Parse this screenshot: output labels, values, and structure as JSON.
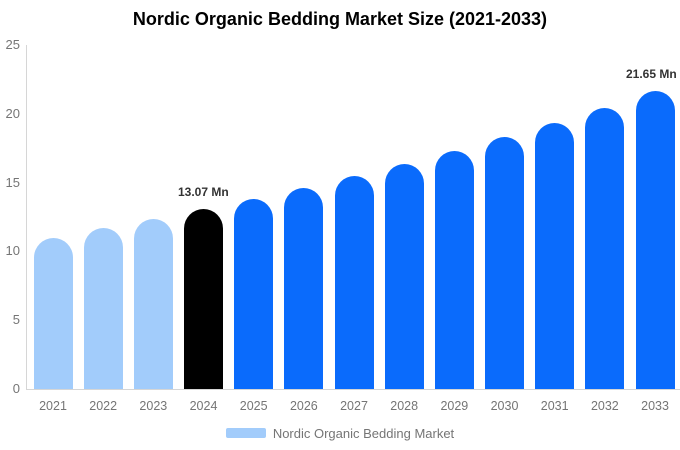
{
  "chart_data": {
    "type": "bar",
    "title": "Nordic Organic Bedding Market Size (2021-2033)",
    "categories": [
      "2021",
      "2022",
      "2023",
      "2024",
      "2025",
      "2026",
      "2027",
      "2028",
      "2029",
      "2030",
      "2031",
      "2032",
      "2033"
    ],
    "values": [
      11.0,
      11.7,
      12.35,
      13.07,
      13.8,
      14.6,
      15.45,
      16.35,
      17.3,
      18.3,
      19.35,
      20.45,
      21.65
    ],
    "bar_styles": [
      "past",
      "past",
      "past",
      "current",
      "forecast",
      "forecast",
      "forecast",
      "forecast",
      "forecast",
      "forecast",
      "forecast",
      "forecast",
      "forecast"
    ],
    "data_labels": [
      {
        "category": "2024",
        "text": "13.07 Mn"
      },
      {
        "category": "2033",
        "text": "21.65 Mn"
      }
    ],
    "value_unit": "Mn",
    "xlabel": "",
    "ylabel": "",
    "ylim": [
      0,
      25
    ],
    "y_ticks": [
      0,
      5,
      10,
      15,
      20,
      25
    ],
    "grid": false,
    "legend_position": "bottom"
  },
  "legend": {
    "label": "Nordic Organic Bedding Market"
  },
  "colors": {
    "past": "#A2CCFB",
    "current": "#000000",
    "forecast": "#0A6BFC",
    "title_text": "#000000",
    "axis_text": "#757575",
    "data_label_text": "#333333",
    "axis_line": "#D6D6D6",
    "background": "#FFFFFF"
  }
}
